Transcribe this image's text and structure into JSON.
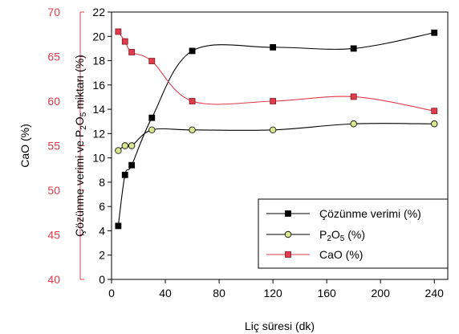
{
  "chart_data": {
    "type": "line",
    "x": [
      5,
      10,
      15,
      30,
      60,
      120,
      180,
      240
    ],
    "xlabel": "Liç süresi (dk)",
    "xlim": [
      0,
      250
    ],
    "xticks": [
      0,
      40,
      80,
      120,
      160,
      200,
      240
    ],
    "ylabel_right_axis": {
      "parts": [
        "Çözünme verimi ve P",
        "2",
        "O",
        "5",
        " miktarı (%)"
      ],
      "ylim": [
        0,
        22
      ],
      "yticks": [
        0,
        2,
        4,
        6,
        8,
        10,
        12,
        14,
        16,
        18,
        20,
        22
      ]
    },
    "ylabel_left_axis": {
      "text": "CaO (%)",
      "ylim": [
        40,
        70
      ],
      "yticks": [
        40,
        45,
        50,
        55,
        60,
        65,
        70
      ]
    },
    "series": [
      {
        "name": "Çözünme verimi (%)",
        "axis": "right",
        "marker": "square",
        "marker_fill": "#000000",
        "line_color": "#000000",
        "values": [
          4.4,
          8.6,
          9.4,
          13.3,
          18.8,
          19.1,
          19.0,
          20.3
        ]
      },
      {
        "name_parts": [
          "P",
          "2",
          "O",
          "5",
          " (%)"
        ],
        "axis": "right",
        "marker": "circle",
        "marker_fill": "#d9e68f",
        "line_color": "#000000",
        "values": [
          10.6,
          11.0,
          11.0,
          12.3,
          12.3,
          12.3,
          12.8,
          12.8
        ]
      },
      {
        "name": "CaO (%)",
        "axis": "left",
        "marker": "square",
        "marker_fill": "#e03c4b",
        "line_color": "#e03c4b",
        "values": [
          67.8,
          66.7,
          65.5,
          64.5,
          60.0,
          60.0,
          60.5,
          58.9
        ]
      }
    ],
    "legend_position": "bottom-right",
    "grid": false
  }
}
